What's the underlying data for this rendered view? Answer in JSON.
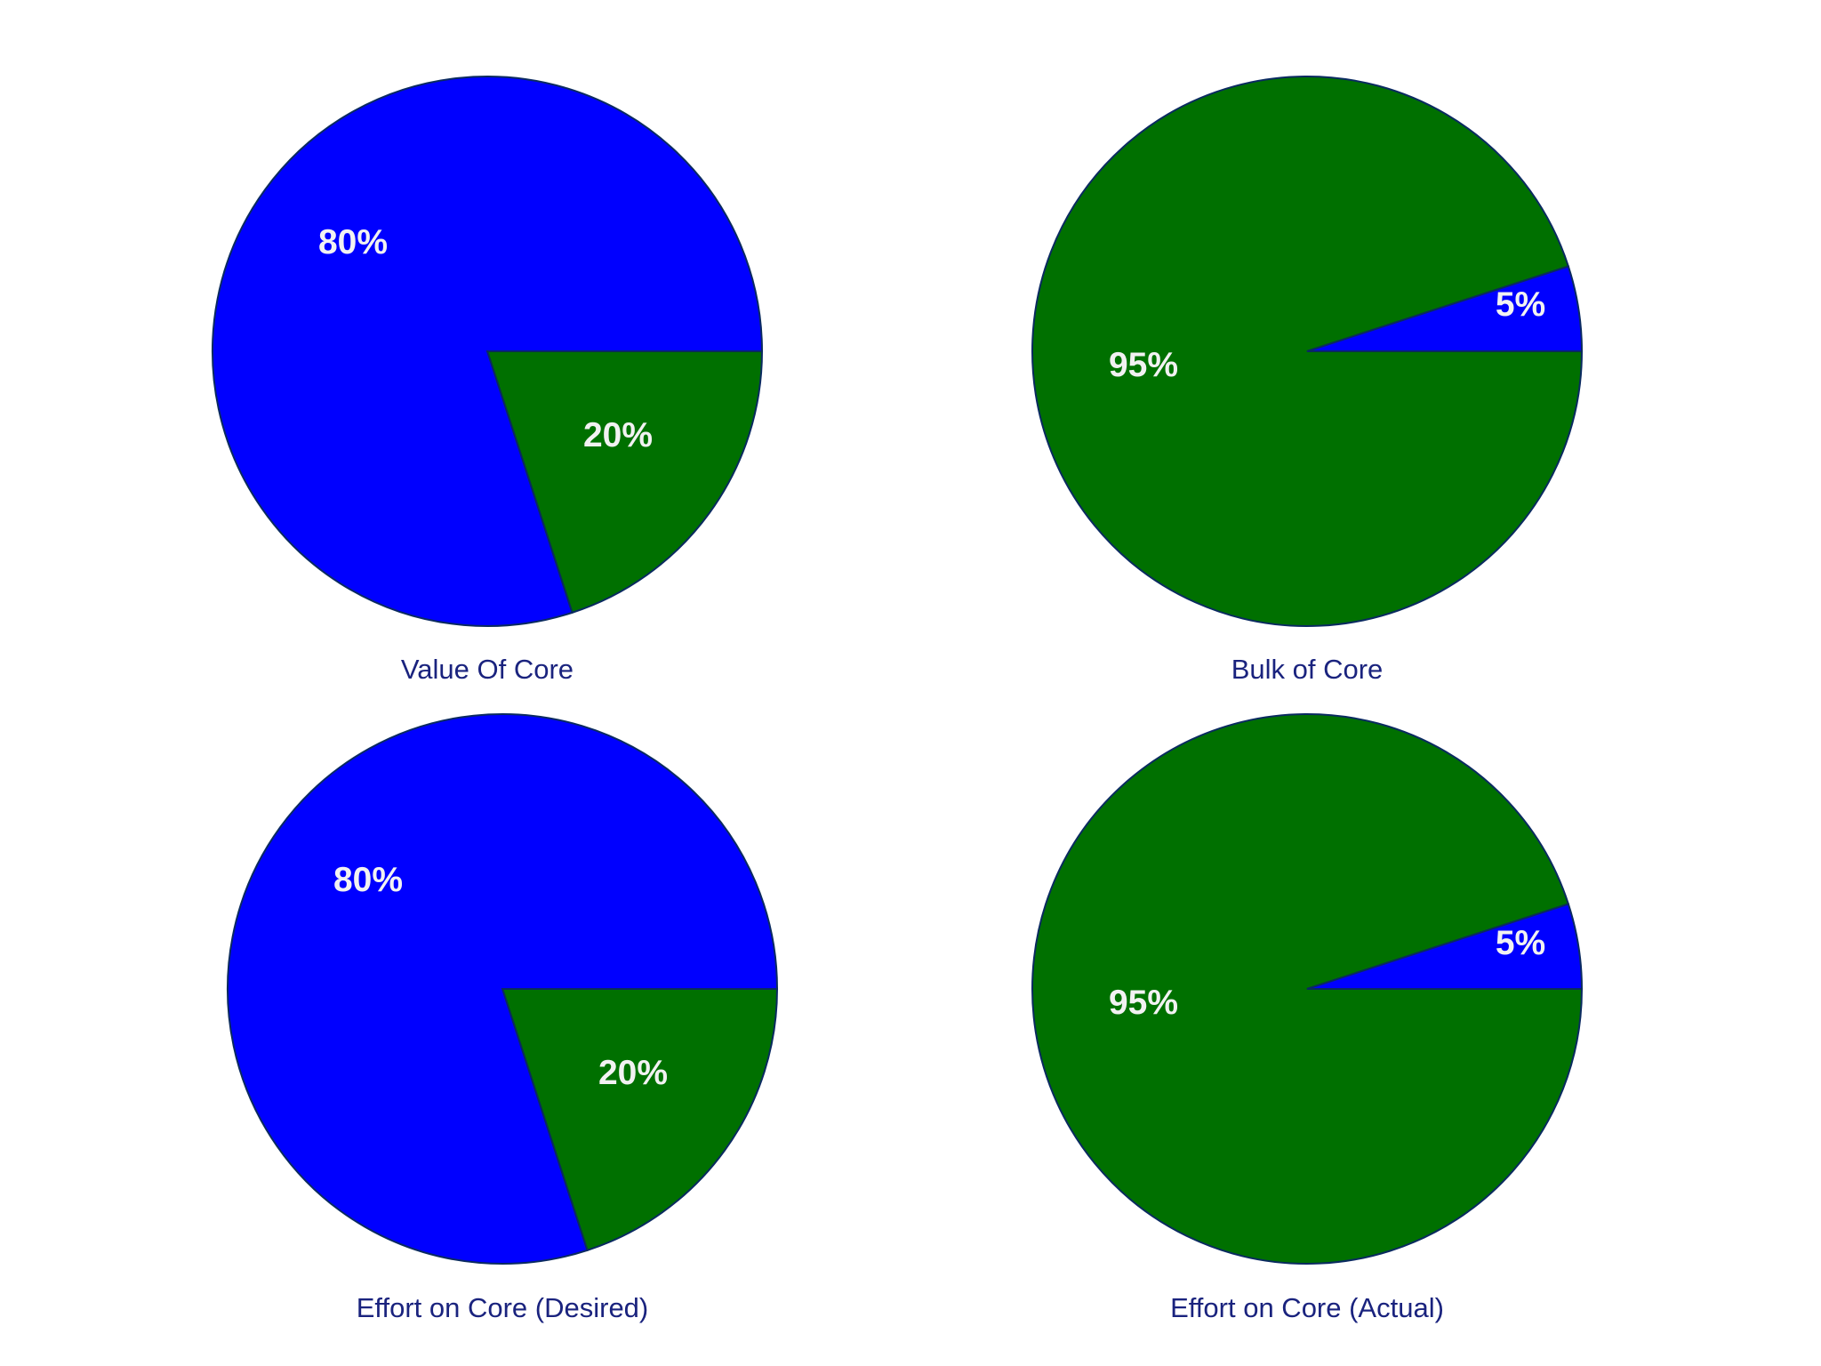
{
  "colors": {
    "blue": "#0000ff",
    "green": "#007000",
    "outline": "#0a2a60",
    "title": "#1a237e",
    "label": "#f2f2f2"
  },
  "chart_data": [
    {
      "type": "pie",
      "title": "Value Of Core",
      "slices": [
        {
          "label": "20%",
          "value": 20,
          "color": "#007000"
        },
        {
          "label": "80%",
          "value": 80,
          "color": "#0000ff"
        }
      ]
    },
    {
      "type": "pie",
      "title": "Bulk of Core",
      "slices": [
        {
          "label": "95%",
          "value": 95,
          "color": "#007000"
        },
        {
          "label": "5%",
          "value": 5,
          "color": "#0000ff"
        }
      ]
    },
    {
      "type": "pie",
      "title": "Effort on Core (Desired)",
      "slices": [
        {
          "label": "20%",
          "value": 20,
          "color": "#007000"
        },
        {
          "label": "80%",
          "value": 80,
          "color": "#0000ff"
        }
      ]
    },
    {
      "type": "pie",
      "title": "Effort on Core (Actual)",
      "slices": [
        {
          "label": "95%",
          "value": 95,
          "color": "#007000"
        },
        {
          "label": "5%",
          "value": 5,
          "color": "#0000ff"
        }
      ]
    }
  ]
}
